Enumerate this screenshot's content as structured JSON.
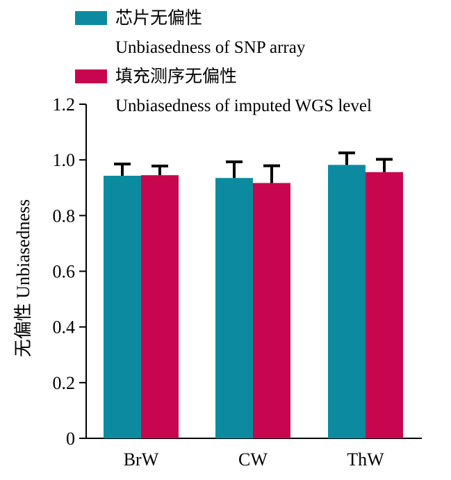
{
  "chart_data": {
    "type": "bar",
    "categories": [
      "BrW",
      "CW",
      "ThW"
    ],
    "series": [
      {
        "name": "芯片无偏性",
        "name_en": "Unbiasedness of SNP array",
        "color": "#0C8BA0",
        "values": [
          0.943,
          0.935,
          0.982
        ],
        "errors": [
          0.042,
          0.058,
          0.043
        ]
      },
      {
        "name": "填充测序无偏性",
        "name_en": "Unbiasedness of imputed WGS level",
        "color": "#C8054F",
        "values": [
          0.945,
          0.917,
          0.956
        ],
        "errors": [
          0.033,
          0.062,
          0.046
        ]
      }
    ],
    "ylabel": "无偏性 Unbiasedness",
    "xlabel": "",
    "ylim": [
      0,
      1.2
    ],
    "yticks": [
      0,
      0.2,
      0.4,
      0.6,
      0.8,
      1.0,
      1.2
    ],
    "ytick_labels": [
      "0",
      "0.2",
      "0.4",
      "0.6",
      "0.8",
      "1.0",
      "1.2"
    ],
    "grid": false,
    "legend_position": "top-left"
  }
}
